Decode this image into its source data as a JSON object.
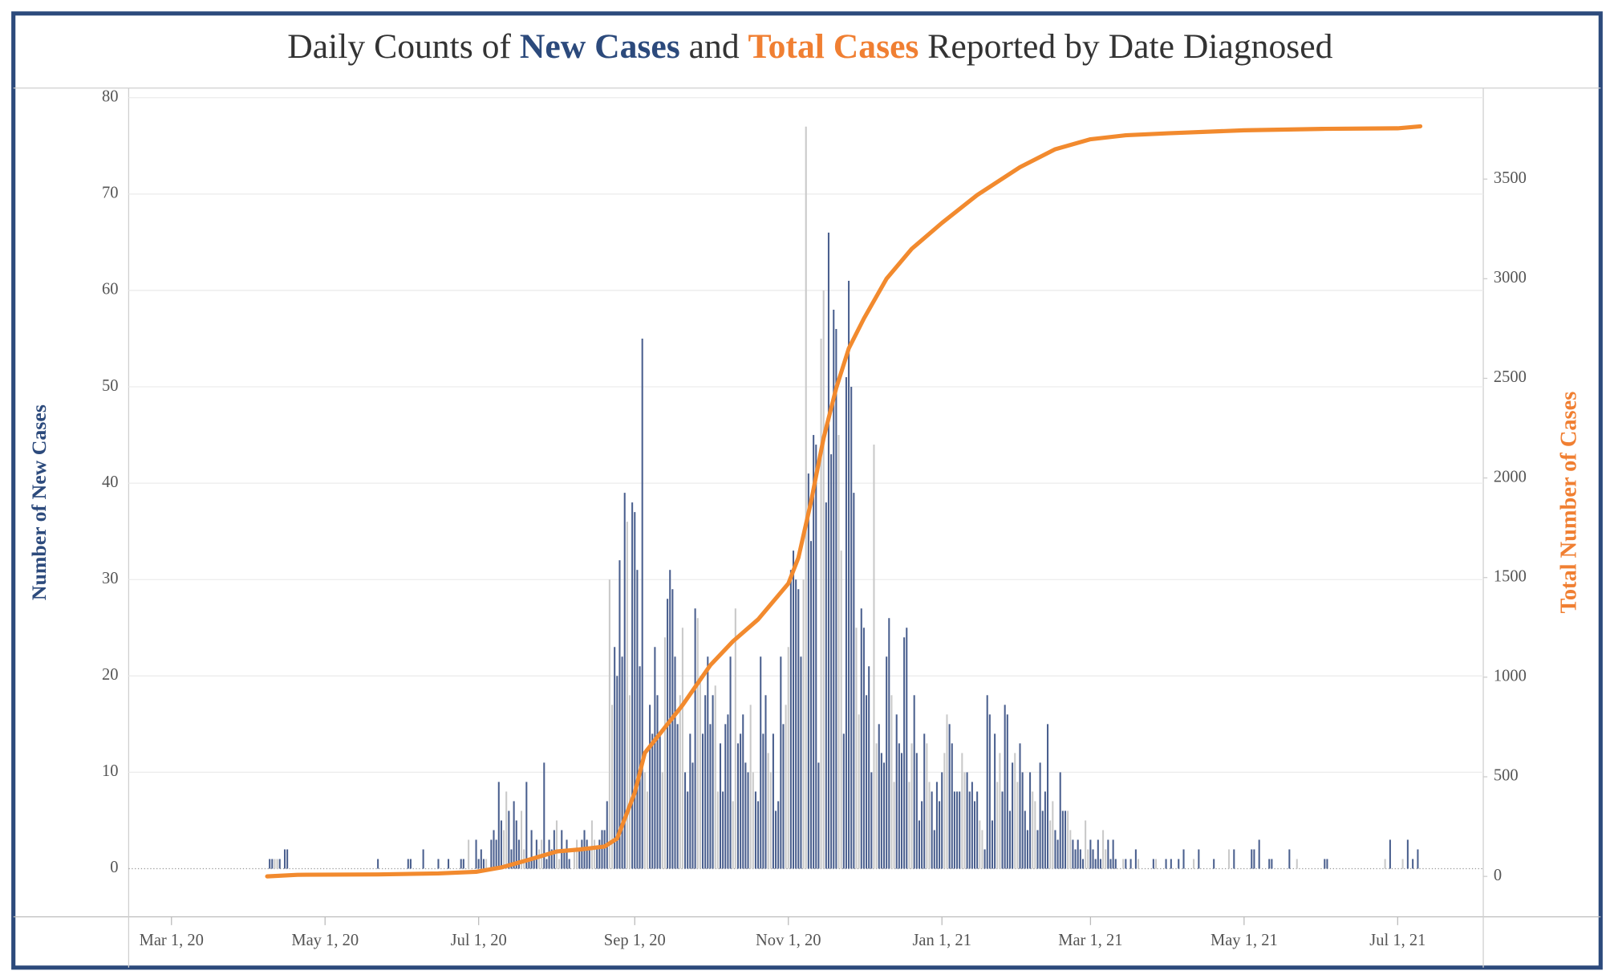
{
  "chart_data": {
    "type": "bar",
    "title_parts": [
      {
        "text": "Daily Counts of ",
        "color": "#333333"
      },
      {
        "text": "New Cases",
        "color": "#2c4a7c",
        "bold": true
      },
      {
        "text": " and ",
        "color": "#333333"
      },
      {
        "text": "Total Cases",
        "color": "#f07f32",
        "bold": true
      },
      {
        "text": " Reported by Date Diagnosed",
        "color": "#333333"
      }
    ],
    "y_label": "Number of New Cases",
    "y_label_color": "#2c4a7c",
    "y2_label": "Total Number of Cases",
    "y2_label_color": "#f07f32",
    "xlim": [
      "2020-02-13",
      "2021-08-04"
    ],
    "xticks": [
      {
        "value": "2020-03-01",
        "label": "Mar 1, 20"
      },
      {
        "value": "2020-05-01",
        "label": "May 1, 20"
      },
      {
        "value": "2020-07-01",
        "label": "Jul 1, 20"
      },
      {
        "value": "2020-09-01",
        "label": "Sep 1, 20"
      },
      {
        "value": "2020-11-01",
        "label": "Nov 1, 20"
      },
      {
        "value": "2021-01-01",
        "label": "Jan 1, 21"
      },
      {
        "value": "2021-03-01",
        "label": "Mar 1, 21"
      },
      {
        "value": "2021-05-01",
        "label": "May 1, 21"
      },
      {
        "value": "2021-07-01",
        "label": "Jul 1, 21"
      }
    ],
    "ylim": [
      -5,
      81
    ],
    "yticks": [
      0,
      10,
      20,
      30,
      40,
      50,
      60,
      70,
      80
    ],
    "y2lim": [
      -203,
      3957
    ],
    "y2ticks": [
      0,
      500,
      1000,
      1500,
      2000,
      2500,
      3000,
      3500
    ],
    "grid": true,
    "series": [
      {
        "type": "bar",
        "color": "#4a5f8e",
        "weekend_color": "#c9c9c9",
        "x": [
          "2020-04-09",
          "2020-04-10",
          "2020-04-11",
          "2020-04-12",
          "2020-04-13",
          "2020-04-15",
          "2020-04-16",
          "2020-05-22",
          "2020-06-03",
          "2020-06-04",
          "2020-06-09",
          "2020-06-15",
          "2020-06-19",
          "2020-06-24",
          "2020-06-25",
          "2020-06-27",
          "2020-06-30",
          "2020-07-01",
          "2020-07-02",
          "2020-07-03",
          "2020-07-04",
          "2020-07-05",
          "2020-07-06",
          "2020-07-07",
          "2020-07-08",
          "2020-07-09",
          "2020-07-10",
          "2020-07-11",
          "2020-07-12",
          "2020-07-13",
          "2020-07-14",
          "2020-07-15",
          "2020-07-16",
          "2020-07-17",
          "2020-07-18",
          "2020-07-19",
          "2020-07-20",
          "2020-07-21",
          "2020-07-22",
          "2020-07-23",
          "2020-07-24",
          "2020-07-25",
          "2020-07-26",
          "2020-07-27",
          "2020-07-28",
          "2020-07-29",
          "2020-07-30",
          "2020-07-31",
          "2020-08-01",
          "2020-08-02",
          "2020-08-03",
          "2020-08-04",
          "2020-08-05",
          "2020-08-06",
          "2020-08-07",
          "2020-08-08",
          "2020-08-09",
          "2020-08-10",
          "2020-08-11",
          "2020-08-12",
          "2020-08-13",
          "2020-08-14",
          "2020-08-15",
          "2020-08-16",
          "2020-08-17",
          "2020-08-18",
          "2020-08-19",
          "2020-08-20",
          "2020-08-21",
          "2020-08-22",
          "2020-08-23",
          "2020-08-24",
          "2020-08-25",
          "2020-08-26",
          "2020-08-27",
          "2020-08-28",
          "2020-08-29",
          "2020-08-30",
          "2020-08-31",
          "2020-09-01",
          "2020-09-02",
          "2020-09-03",
          "2020-09-04",
          "2020-09-05",
          "2020-09-06",
          "2020-09-07",
          "2020-09-08",
          "2020-09-09",
          "2020-09-10",
          "2020-09-11",
          "2020-09-12",
          "2020-09-13",
          "2020-09-14",
          "2020-09-15",
          "2020-09-16",
          "2020-09-17",
          "2020-09-18",
          "2020-09-19",
          "2020-09-20",
          "2020-09-21",
          "2020-09-22",
          "2020-09-23",
          "2020-09-24",
          "2020-09-25",
          "2020-09-26",
          "2020-09-27",
          "2020-09-28",
          "2020-09-29",
          "2020-09-30",
          "2020-10-01",
          "2020-10-02",
          "2020-10-03",
          "2020-10-04",
          "2020-10-05",
          "2020-10-06",
          "2020-10-07",
          "2020-10-08",
          "2020-10-09",
          "2020-10-10",
          "2020-10-11",
          "2020-10-12",
          "2020-10-13",
          "2020-10-14",
          "2020-10-15",
          "2020-10-16",
          "2020-10-17",
          "2020-10-18",
          "2020-10-19",
          "2020-10-20",
          "2020-10-21",
          "2020-10-22",
          "2020-10-23",
          "2020-10-24",
          "2020-10-25",
          "2020-10-26",
          "2020-10-27",
          "2020-10-28",
          "2020-10-29",
          "2020-10-30",
          "2020-10-31",
          "2020-11-01",
          "2020-11-02",
          "2020-11-03",
          "2020-11-04",
          "2020-11-05",
          "2020-11-06",
          "2020-11-07",
          "2020-11-08",
          "2020-11-09",
          "2020-11-10",
          "2020-11-11",
          "2020-11-12",
          "2020-11-13",
          "2020-11-14",
          "2020-11-15",
          "2020-11-16",
          "2020-11-17",
          "2020-11-18",
          "2020-11-19",
          "2020-11-20",
          "2020-11-21",
          "2020-11-22",
          "2020-11-23",
          "2020-11-24",
          "2020-11-25",
          "2020-11-26",
          "2020-11-27",
          "2020-11-28",
          "2020-11-29",
          "2020-11-30",
          "2020-12-01",
          "2020-12-02",
          "2020-12-03",
          "2020-12-04",
          "2020-12-05",
          "2020-12-06",
          "2020-12-07",
          "2020-12-08",
          "2020-12-09",
          "2020-12-10",
          "2020-12-11",
          "2020-12-12",
          "2020-12-13",
          "2020-12-14",
          "2020-12-15",
          "2020-12-16",
          "2020-12-17",
          "2020-12-18",
          "2020-12-19",
          "2020-12-20",
          "2020-12-21",
          "2020-12-22",
          "2020-12-23",
          "2020-12-24",
          "2020-12-25",
          "2020-12-26",
          "2020-12-27",
          "2020-12-28",
          "2020-12-29",
          "2020-12-30",
          "2020-12-31",
          "2021-01-01",
          "2021-01-02",
          "2021-01-03",
          "2021-01-04",
          "2021-01-05",
          "2021-01-06",
          "2021-01-07",
          "2021-01-08",
          "2021-01-09",
          "2021-01-10",
          "2021-01-11",
          "2021-01-12",
          "2021-01-13",
          "2021-01-14",
          "2021-01-15",
          "2021-01-16",
          "2021-01-17",
          "2021-01-18",
          "2021-01-19",
          "2021-01-20",
          "2021-01-21",
          "2021-01-22",
          "2021-01-23",
          "2021-01-24",
          "2021-01-25",
          "2021-01-26",
          "2021-01-27",
          "2021-01-28",
          "2021-01-29",
          "2021-01-30",
          "2021-01-31",
          "2021-02-01",
          "2021-02-02",
          "2021-02-03",
          "2021-02-04",
          "2021-02-05",
          "2021-02-06",
          "2021-02-07",
          "2021-02-08",
          "2021-02-09",
          "2021-02-10",
          "2021-02-11",
          "2021-02-12",
          "2021-02-13",
          "2021-02-14",
          "2021-02-15",
          "2021-02-16",
          "2021-02-17",
          "2021-02-18",
          "2021-02-19",
          "2021-02-20",
          "2021-02-21",
          "2021-02-22",
          "2021-02-23",
          "2021-02-24",
          "2021-02-25",
          "2021-02-26",
          "2021-02-27",
          "2021-02-28",
          "2021-03-01",
          "2021-03-02",
          "2021-03-03",
          "2021-03-04",
          "2021-03-05",
          "2021-03-06",
          "2021-03-07",
          "2021-03-08",
          "2021-03-09",
          "2021-03-10",
          "2021-03-11",
          "2021-03-12",
          "2021-03-13",
          "2021-03-14",
          "2021-03-15",
          "2021-03-16",
          "2021-03-17",
          "2021-03-18",
          "2021-03-19",
          "2021-03-20",
          "2021-03-21",
          "2021-03-22",
          "2021-03-23",
          "2021-03-24",
          "2021-03-25",
          "2021-03-26",
          "2021-03-27",
          "2021-03-28",
          "2021-03-29",
          "2021-03-30",
          "2021-03-31",
          "2021-04-02",
          "2021-04-05",
          "2021-04-07",
          "2021-04-11",
          "2021-04-13",
          "2021-04-19",
          "2021-04-25",
          "2021-04-27",
          "2021-05-04",
          "2021-05-05",
          "2021-05-07",
          "2021-05-11",
          "2021-05-12",
          "2021-05-19",
          "2021-05-22",
          "2021-06-02",
          "2021-06-03",
          "2021-06-26",
          "2021-06-28",
          "2021-07-03",
          "2021-07-05",
          "2021-07-07",
          "2021-07-09"
        ],
        "values": [
          1,
          1,
          1,
          1,
          1,
          2,
          2,
          1,
          1,
          1,
          2,
          1,
          1,
          1,
          1,
          3,
          3,
          1,
          2,
          1,
          1,
          0,
          3,
          4,
          3,
          9,
          5,
          4,
          8,
          6,
          2,
          7,
          5,
          3,
          6,
          2,
          9,
          1,
          4,
          1,
          3,
          2,
          3,
          11,
          1,
          3,
          2,
          4,
          5,
          1,
          4,
          2,
          3,
          1,
          0,
          2,
          3,
          2,
          3,
          4,
          3,
          2,
          5,
          3,
          2,
          3,
          4,
          4,
          7,
          30,
          17,
          23,
          20,
          32,
          22,
          39,
          36,
          18,
          38,
          37,
          31,
          21,
          55,
          10,
          8,
          17,
          14,
          23,
          18,
          14,
          10,
          24,
          28,
          31,
          29,
          22,
          15,
          18,
          25,
          10,
          8,
          14,
          11,
          27,
          26,
          20,
          14,
          18,
          22,
          15,
          18,
          19,
          8,
          13,
          8,
          15,
          16,
          22,
          7,
          27,
          13,
          14,
          16,
          11,
          10,
          17,
          10,
          8,
          7,
          22,
          14,
          18,
          12,
          10,
          14,
          6,
          7,
          22,
          15,
          17,
          23,
          31,
          33,
          30,
          29,
          22,
          30,
          77,
          41,
          34,
          45,
          44,
          11,
          55,
          60,
          38,
          66,
          43,
          58,
          56,
          45,
          33,
          14,
          51,
          61,
          50,
          39,
          25,
          16,
          27,
          25,
          18,
          21,
          10,
          44,
          13,
          15,
          12,
          11,
          22,
          26,
          18,
          9,
          16,
          13,
          12,
          24,
          25,
          9,
          13,
          18,
          12,
          5,
          7,
          14,
          13,
          9,
          8,
          4,
          9,
          7,
          10,
          12,
          16,
          15,
          13,
          8,
          8,
          8,
          12,
          10,
          10,
          8,
          9,
          7,
          8,
          5,
          4,
          2,
          18,
          16,
          5,
          14,
          9,
          12,
          8,
          17,
          16,
          6,
          11,
          12,
          9,
          13,
          10,
          6,
          4,
          10,
          8,
          7,
          4,
          11,
          6,
          8,
          15,
          5,
          7,
          4,
          3,
          10,
          6,
          6,
          6,
          4,
          3,
          2,
          3,
          2,
          1,
          5,
          2,
          3,
          2,
          1,
          3,
          1,
          4,
          2,
          3,
          1,
          3,
          1,
          0,
          0,
          1,
          1,
          0,
          1,
          0,
          2,
          1,
          0,
          0,
          0,
          0,
          0,
          1,
          1,
          0,
          0,
          0,
          1,
          1,
          1,
          2,
          1,
          2,
          1,
          2,
          2,
          2,
          2,
          3,
          1,
          1,
          2,
          1,
          1,
          1,
          1,
          3,
          1,
          3,
          1,
          2
        ]
      },
      {
        "type": "line",
        "axis": "y2",
        "color": "#f28a2e",
        "x": [
          "2020-04-08",
          "2020-04-20",
          "2020-05-22",
          "2020-06-15",
          "2020-06-30",
          "2020-07-10",
          "2020-07-20",
          "2020-08-01",
          "2020-08-10",
          "2020-08-20",
          "2020-08-25",
          "2020-09-01",
          "2020-09-05",
          "2020-09-10",
          "2020-09-20",
          "2020-10-01",
          "2020-10-10",
          "2020-10-20",
          "2020-11-01",
          "2020-11-05",
          "2020-11-10",
          "2020-11-15",
          "2020-11-20",
          "2020-11-25",
          "2020-12-01",
          "2020-12-10",
          "2020-12-20",
          "2021-01-01",
          "2021-01-15",
          "2021-02-01",
          "2021-02-15",
          "2021-03-01",
          "2021-03-15",
          "2021-04-01",
          "2021-05-01",
          "2021-06-01",
          "2021-07-01",
          "2021-07-10"
        ],
        "values": [
          0,
          8,
          10,
          15,
          23,
          45,
          80,
          125,
          135,
          150,
          190,
          420,
          620,
          700,
          860,
          1060,
          1180,
          1290,
          1470,
          1600,
          1880,
          2200,
          2450,
          2650,
          2800,
          3000,
          3150,
          3280,
          3420,
          3560,
          3650,
          3700,
          3720,
          3730,
          3745,
          3752,
          3755,
          3765
        ]
      }
    ]
  }
}
